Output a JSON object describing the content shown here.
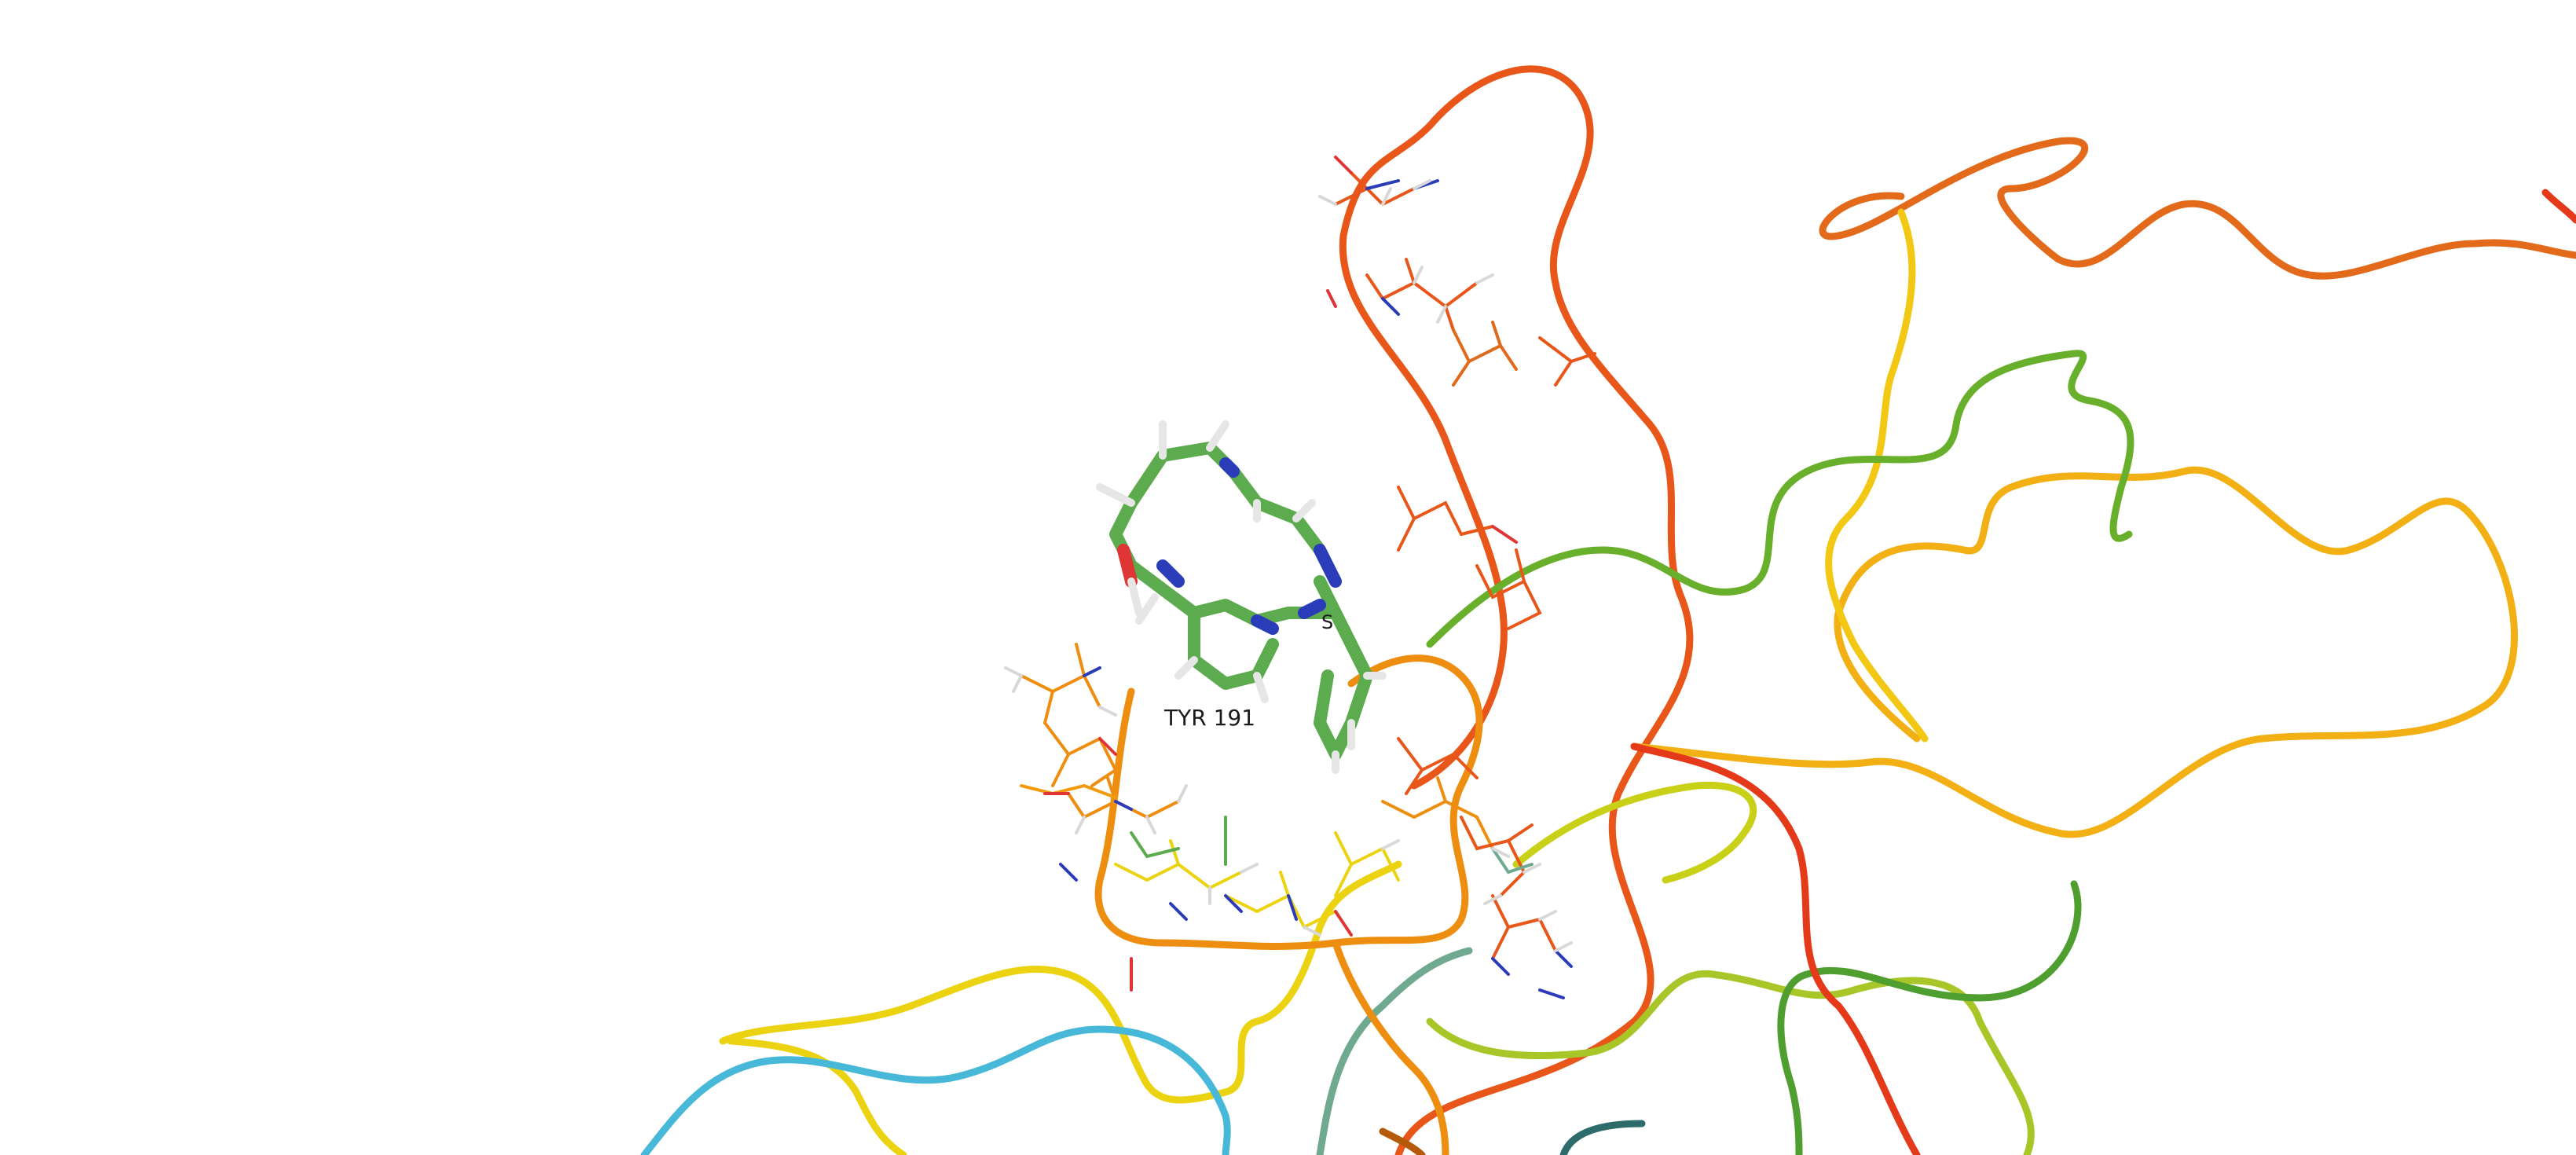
{
  "scene": {
    "background": "#ffffff",
    "labels": [
      {
        "id": "tyr191",
        "text": "TYR 191"
      },
      {
        "id": "partial",
        "text": "S"
      }
    ],
    "colors": {
      "ligand_carbon": "#5cab4f",
      "nitrogen": "#2b3cb8",
      "oxygen": "#e03535",
      "hydrogen": "#e6e6e6",
      "orange_red": "#e8561a",
      "orange": "#f29a0e",
      "yellow": "#ecd312",
      "yellow_green": "#b4c420",
      "green": "#5aa83c",
      "teal": "#6fa98f",
      "cyan": "#48b8d8",
      "red": "#e43a1a",
      "olive": "#6b6b10"
    }
  }
}
